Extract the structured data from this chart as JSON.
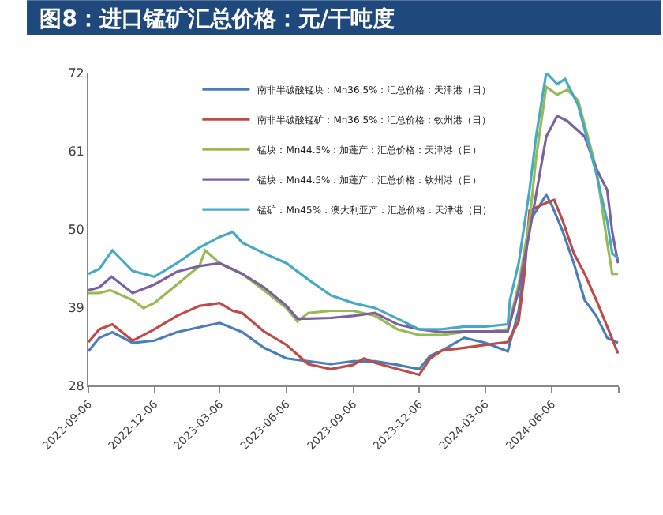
{
  "chart_data": {
    "type": "line",
    "title": "图8：进口锰矿汇总价格：元/干吨度",
    "xlim": [
      "2022-09-06",
      "2024-09-06"
    ],
    "xticks": [
      {
        "value": "2022-09-06",
        "label": "2022-09-06"
      },
      {
        "value": "2022-12-06",
        "label": "2022-12-06"
      },
      {
        "value": "2023-03-06",
        "label": "2023-03-06"
      },
      {
        "value": "2023-06-06",
        "label": "2023-06-06"
      },
      {
        "value": "2023-09-06",
        "label": "2023-09-06"
      },
      {
        "value": "2023-12-06",
        "label": "2023-12-06"
      },
      {
        "value": "2024-03-06",
        "label": "2024-03-06"
      },
      {
        "value": "2024-06-06",
        "label": "2024-06-06"
      },
      {
        "value": "2024-09-06",
        "label": null
      }
    ],
    "ylim": [
      28,
      72
    ],
    "yticks": [
      28,
      39,
      50,
      61,
      72
    ],
    "legend": "top",
    "marker": "none",
    "line_style": "solid",
    "series": [
      {
        "name": "南非半碳酸锰块：Mn36.5%：汇总价格：天津港（日）",
        "color": "#4a7ebb",
        "x": [
          "2022-09-06",
          "2022-09-21",
          "2022-10-09",
          "2022-11-06",
          "2022-12-06",
          "2023-01-06",
          "2023-02-06",
          "2023-03-06",
          "2023-04-06",
          "2023-05-06",
          "2023-06-06",
          "2023-07-06",
          "2023-08-06",
          "2023-09-06",
          "2023-10-06",
          "2023-11-06",
          "2023-12-06",
          "2023-12-21",
          "2024-01-06",
          "2024-02-06",
          "2024-03-06",
          "2024-04-06",
          "2024-04-21",
          "2024-05-06",
          "2024-05-29",
          "2024-06-06",
          "2024-06-21",
          "2024-07-06",
          "2024-07-21",
          "2024-08-06",
          "2024-08-21",
          "2024-09-05"
        ],
        "values": [
          32.8,
          34.7,
          35.5,
          34.0,
          34.3,
          35.5,
          36.2,
          36.8,
          35.5,
          33.3,
          31.8,
          31.4,
          31.0,
          31.4,
          31.4,
          30.9,
          30.3,
          32.2,
          32.9,
          34.7,
          34.0,
          32.8,
          38.5,
          51.1,
          54.8,
          53.3,
          49.6,
          45.2,
          40.0,
          37.8,
          34.7,
          34.0
        ]
      },
      {
        "name": "南非半碳酸锰矿：Mn36.5%：汇总价格：钦州港（日）",
        "color": "#be4b48",
        "x": [
          "2022-09-06",
          "2022-09-21",
          "2022-10-09",
          "2022-11-06",
          "2022-12-06",
          "2023-01-06",
          "2023-02-06",
          "2023-03-06",
          "2023-03-24",
          "2023-04-06",
          "2023-05-06",
          "2023-06-06",
          "2023-07-06",
          "2023-08-06",
          "2023-09-06",
          "2023-09-21",
          "2023-10-06",
          "2023-11-06",
          "2023-12-06",
          "2023-12-21",
          "2024-01-06",
          "2024-02-06",
          "2024-03-06",
          "2024-04-06",
          "2024-04-21",
          "2024-04-29",
          "2024-05-06",
          "2024-05-29",
          "2024-06-09",
          "2024-06-21",
          "2024-07-06",
          "2024-07-21",
          "2024-08-06",
          "2024-08-21",
          "2024-09-05"
        ],
        "values": [
          34.1,
          35.9,
          36.6,
          34.3,
          35.9,
          37.8,
          39.2,
          39.6,
          38.5,
          38.2,
          35.6,
          33.7,
          31.0,
          30.3,
          30.9,
          31.8,
          31.2,
          30.3,
          29.5,
          31.8,
          32.9,
          33.3,
          33.7,
          34.1,
          37.0,
          43.7,
          52.6,
          53.7,
          54.1,
          51.1,
          46.6,
          43.7,
          40.0,
          36.3,
          32.5
        ]
      },
      {
        "name": "锰块：Mn44.5%：加蓬产：汇总价格：天津港（日）",
        "color": "#98b954",
        "x": [
          "2022-09-06",
          "2022-09-21",
          "2022-10-06",
          "2022-11-06",
          "2022-11-21",
          "2022-12-06",
          "2023-01-06",
          "2023-02-06",
          "2023-02-14",
          "2023-03-06",
          "2023-04-06",
          "2023-05-06",
          "2023-06-06",
          "2023-06-21",
          "2023-07-06",
          "2023-08-06",
          "2023-09-06",
          "2023-10-06",
          "2023-11-06",
          "2023-12-06",
          "2024-01-06",
          "2024-02-06",
          "2024-03-06",
          "2024-04-06",
          "2024-04-21",
          "2024-05-06",
          "2024-05-15",
          "2024-05-29",
          "2024-06-13",
          "2024-06-27",
          "2024-07-12",
          "2024-08-06",
          "2024-08-21",
          "2024-08-28",
          "2024-09-05"
        ],
        "values": [
          41.0,
          41.0,
          41.4,
          40.0,
          38.9,
          39.6,
          42.2,
          44.8,
          47.0,
          45.2,
          43.7,
          41.4,
          38.9,
          37.0,
          38.2,
          38.5,
          38.5,
          37.8,
          35.9,
          35.1,
          35.1,
          35.5,
          35.5,
          35.9,
          42.2,
          51.1,
          60.0,
          70.0,
          68.9,
          69.6,
          68.1,
          58.5,
          48.1,
          43.7,
          43.7
        ]
      },
      {
        "name": "锰块：Mn44.5%：加蓬产：汇总价格：钦州港（日）",
        "color": "#7d60a0",
        "x": [
          "2022-09-06",
          "2022-09-21",
          "2022-10-08",
          "2022-11-06",
          "2022-12-06",
          "2023-01-06",
          "2023-02-06",
          "2023-03-06",
          "2023-04-06",
          "2023-05-06",
          "2023-06-06",
          "2023-06-21",
          "2023-07-06",
          "2023-08-06",
          "2023-09-06",
          "2023-10-06",
          "2023-11-06",
          "2023-12-06",
          "2024-01-06",
          "2024-02-06",
          "2024-03-06",
          "2024-04-06",
          "2024-04-21",
          "2024-05-06",
          "2024-05-15",
          "2024-05-29",
          "2024-06-13",
          "2024-06-27",
          "2024-07-21",
          "2024-08-06",
          "2024-08-21",
          "2024-08-28",
          "2024-09-05"
        ],
        "values": [
          41.4,
          41.8,
          43.3,
          41.0,
          42.2,
          44.0,
          44.8,
          45.2,
          43.7,
          41.8,
          39.2,
          37.4,
          37.4,
          37.5,
          37.8,
          38.2,
          36.6,
          35.9,
          35.5,
          35.6,
          35.6,
          35.6,
          41.4,
          49.6,
          54.8,
          63.0,
          65.9,
          65.2,
          63.0,
          58.5,
          55.5,
          49.6,
          45.2
        ]
      },
      {
        "name": "锰矿：Mn45%：澳大利亚产：汇总价格：天津港（日）",
        "color": "#46aac5",
        "x": [
          "2022-09-06",
          "2022-09-21",
          "2022-10-09",
          "2022-11-06",
          "2022-12-06",
          "2023-01-06",
          "2023-02-06",
          "2023-03-06",
          "2023-03-24",
          "2023-04-06",
          "2023-05-06",
          "2023-06-06",
          "2023-07-06",
          "2023-08-06",
          "2023-09-06",
          "2023-10-06",
          "2023-11-06",
          "2023-12-06",
          "2024-01-06",
          "2024-02-06",
          "2024-03-06",
          "2024-04-06",
          "2024-04-09",
          "2024-04-21",
          "2024-05-06",
          "2024-05-15",
          "2024-05-29",
          "2024-06-13",
          "2024-06-24",
          "2024-07-12",
          "2024-08-06",
          "2024-08-21",
          "2024-08-28",
          "2024-09-05"
        ],
        "values": [
          43.7,
          44.4,
          47.0,
          44.1,
          43.3,
          45.2,
          47.4,
          48.9,
          49.6,
          48.1,
          46.6,
          45.2,
          42.9,
          40.7,
          39.6,
          38.9,
          37.4,
          35.9,
          35.9,
          36.3,
          36.3,
          36.6,
          40.0,
          45.2,
          55.5,
          63.0,
          72.0,
          70.4,
          71.1,
          67.4,
          57.8,
          51.1,
          46.6,
          45.9
        ]
      }
    ]
  }
}
